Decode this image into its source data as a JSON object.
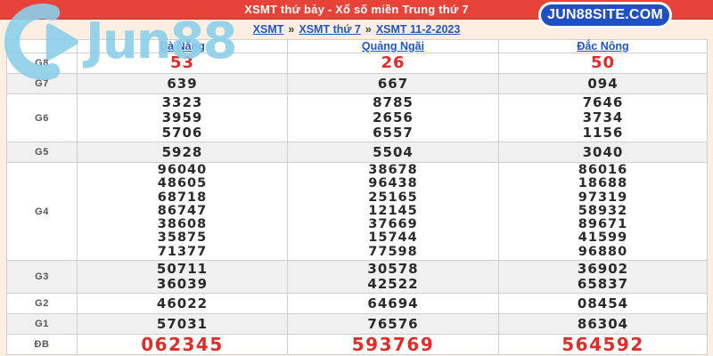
{
  "header": {
    "title": "XSMT thứ bảy - Xổ số miền Trung thứ 7",
    "badge": "JUN88SITE.COM"
  },
  "breadcrumb": {
    "separator": "»",
    "items": [
      "XSMT",
      "XSMT thứ 7",
      "XSMT 11-2-2023"
    ]
  },
  "logo": {
    "text": "Jun88"
  },
  "colors": {
    "titlebar_red": "#e84338",
    "badge_blue": "#1e4fc5",
    "link_blue": "#1f55c8",
    "highlight_red": "#e32b28",
    "row_shade": "#f0f0f0",
    "page_cream": "#fcefe2",
    "watermark_blue": "#8ccfe9"
  },
  "table": {
    "columns": [
      "Đà Nẵng",
      "Quảng Ngãi",
      "Đắc Nông"
    ],
    "rows": [
      {
        "label": "G8",
        "emphasis": "red",
        "cols": [
          [
            "53"
          ],
          [
            "26"
          ],
          [
            "50"
          ]
        ]
      },
      {
        "label": "G7",
        "cols": [
          [
            "639"
          ],
          [
            "667"
          ],
          [
            "094"
          ]
        ]
      },
      {
        "label": "G6",
        "cols": [
          [
            "3323",
            "3959",
            "5706"
          ],
          [
            "8785",
            "2656",
            "6557"
          ],
          [
            "7646",
            "3734",
            "1156"
          ]
        ]
      },
      {
        "label": "G5",
        "cols": [
          [
            "5928"
          ],
          [
            "5504"
          ],
          [
            "3040"
          ]
        ]
      },
      {
        "label": "G4",
        "cols": [
          [
            "96040",
            "48605",
            "68718",
            "86747",
            "38608",
            "35875",
            "71377"
          ],
          [
            "38678",
            "96438",
            "25165",
            "12145",
            "37669",
            "15744",
            "77598"
          ],
          [
            "86016",
            "18688",
            "97319",
            "58932",
            "89671",
            "41599",
            "96880"
          ]
        ]
      },
      {
        "label": "G3",
        "cols": [
          [
            "50711",
            "36039"
          ],
          [
            "30578",
            "42522"
          ],
          [
            "36902",
            "65837"
          ]
        ]
      },
      {
        "label": "G2",
        "cols": [
          [
            "46022"
          ],
          [
            "64694"
          ],
          [
            "08454"
          ]
        ]
      },
      {
        "label": "G1",
        "cols": [
          [
            "57031"
          ],
          [
            "76576"
          ],
          [
            "86304"
          ]
        ]
      },
      {
        "label": "ĐB",
        "emphasis": "red-large",
        "cols": [
          [
            "062345"
          ],
          [
            "593769"
          ],
          [
            "564592"
          ]
        ]
      }
    ]
  }
}
